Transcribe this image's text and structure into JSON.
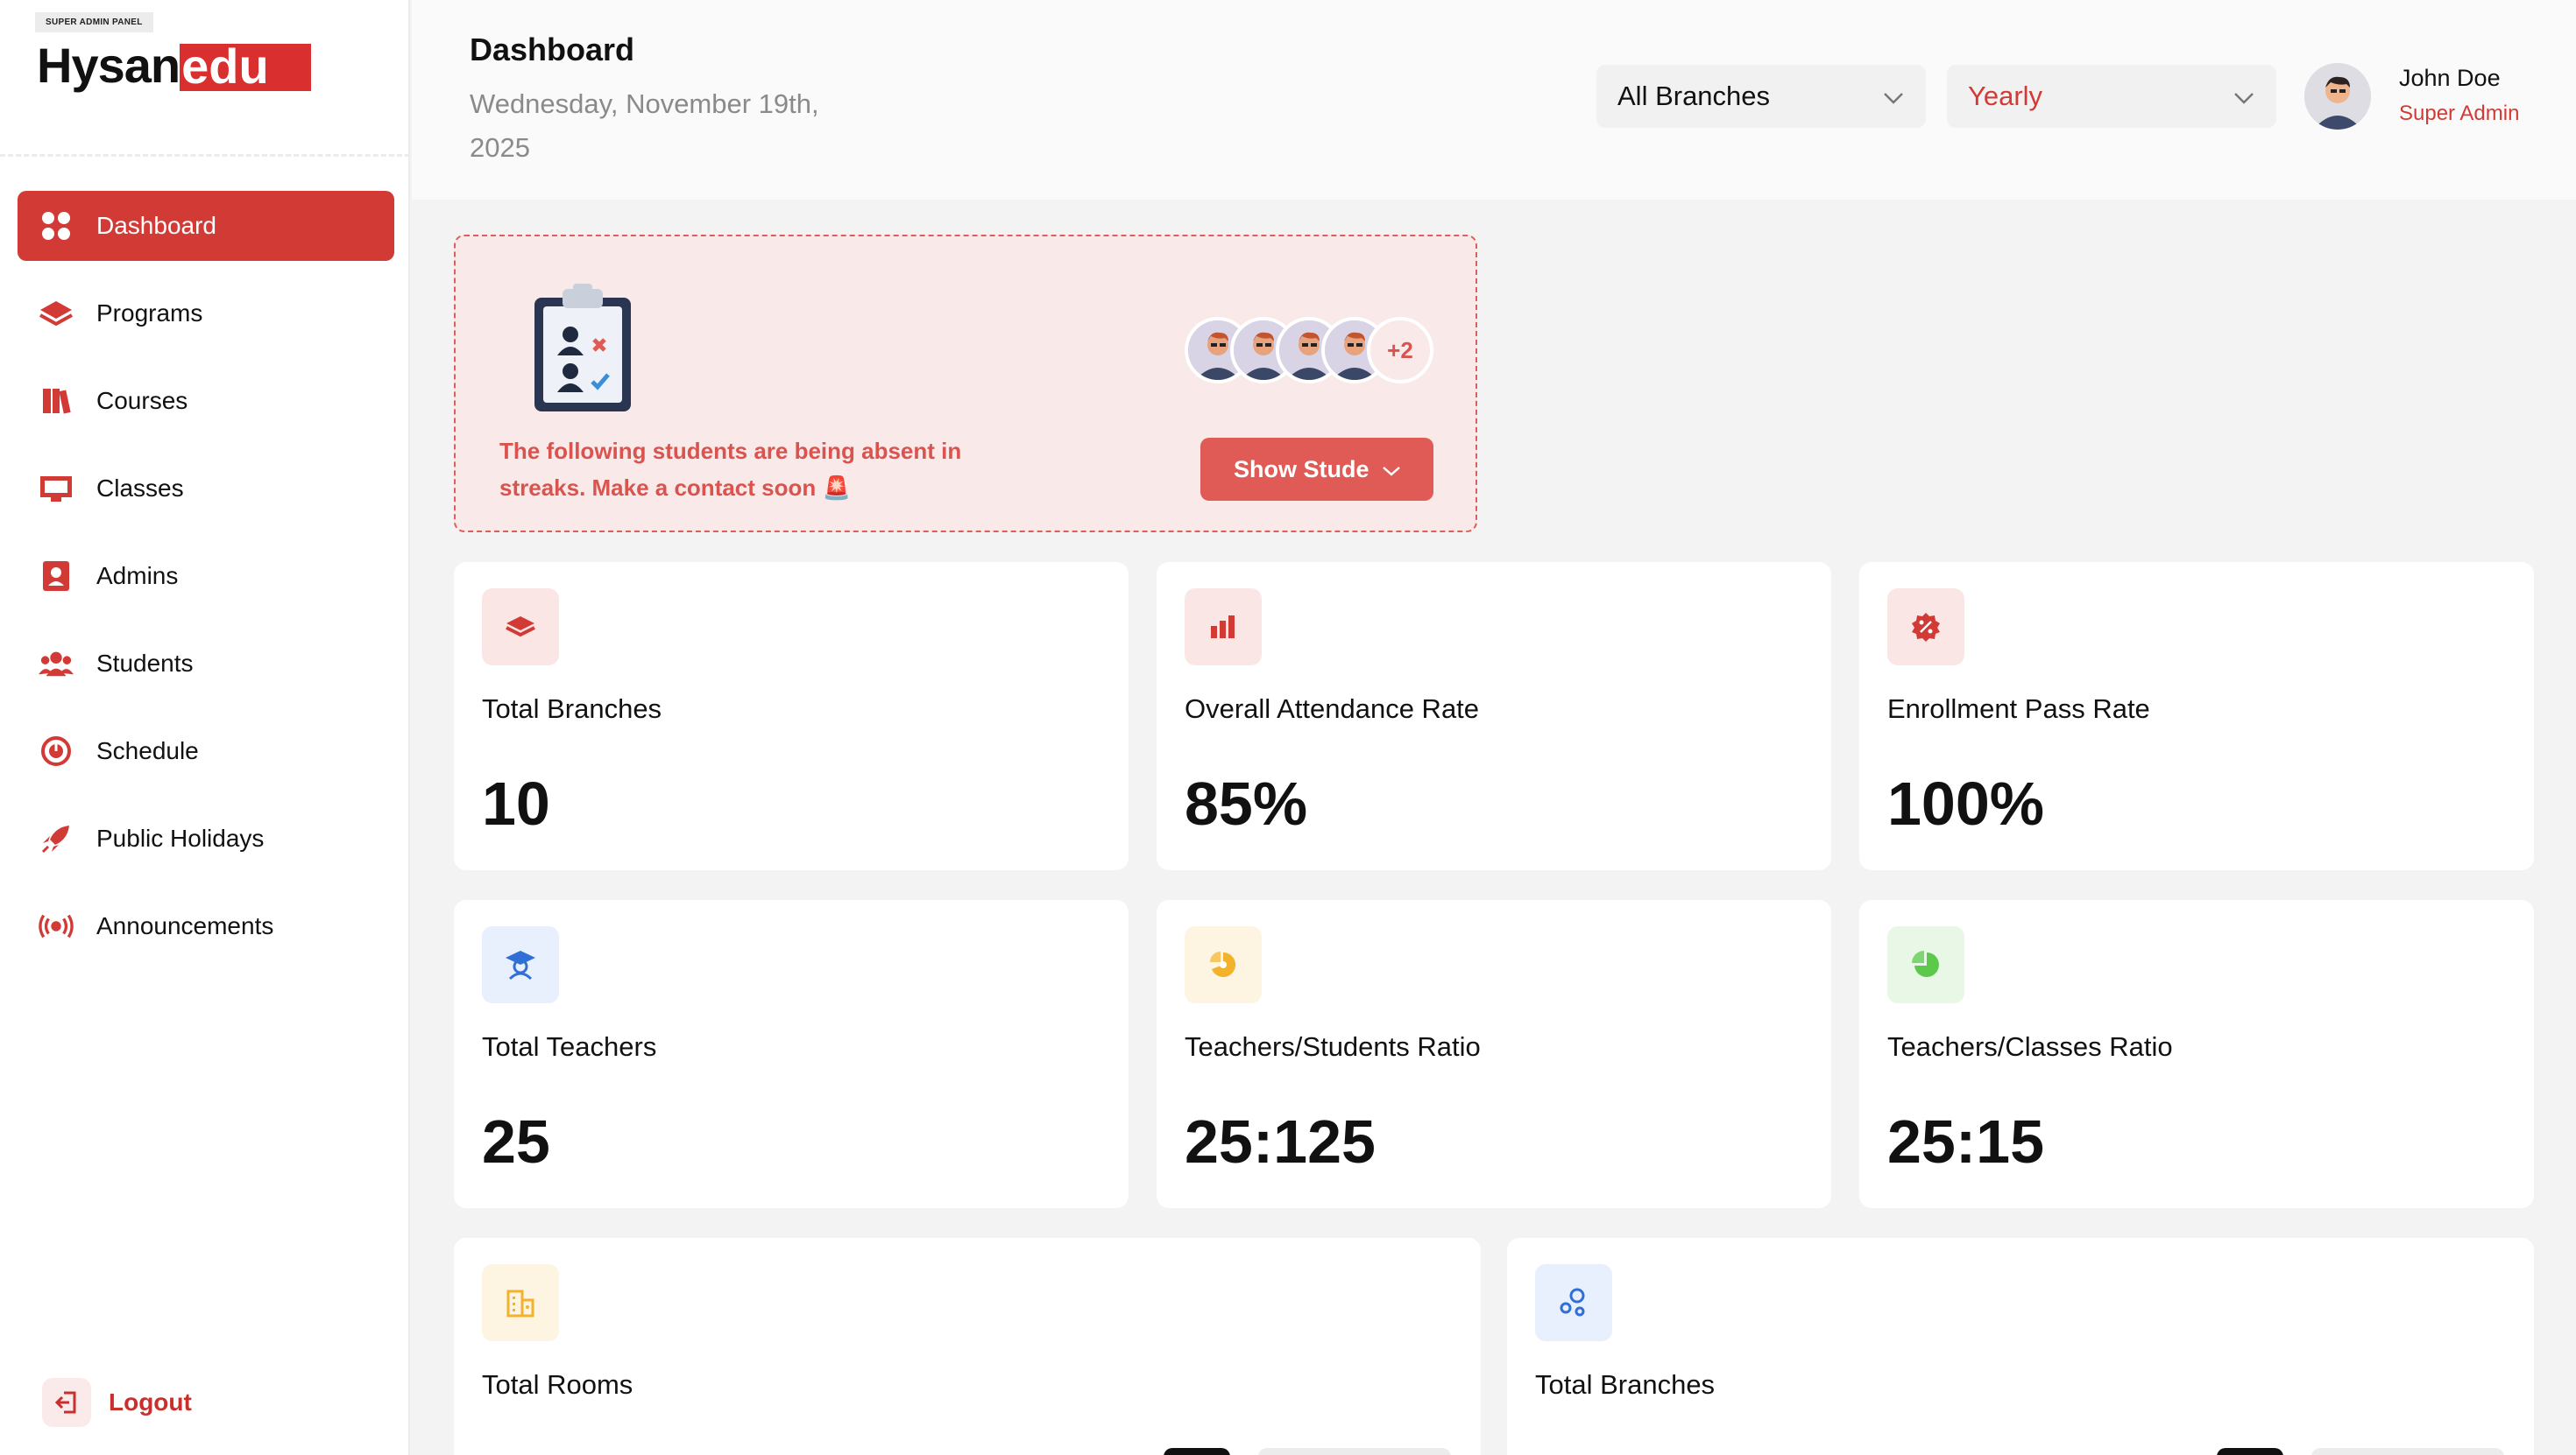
{
  "brand": {
    "tag": "SUPER ADMIN PANEL",
    "name": "Hysan",
    "suffix": "edu",
    "accent": "#d23a35"
  },
  "sidebar": {
    "items": [
      {
        "label": "Dashboard",
        "icon": "grid-icon",
        "active": true
      },
      {
        "label": "Programs",
        "icon": "layers-icon"
      },
      {
        "label": "Courses",
        "icon": "books-icon"
      },
      {
        "label": "Classes",
        "icon": "whiteboard-icon"
      },
      {
        "label": "Admins",
        "icon": "id-badge-icon"
      },
      {
        "label": "Students",
        "icon": "users-icon"
      },
      {
        "label": "Schedule",
        "icon": "clock-icon"
      },
      {
        "label": "Public Holidays",
        "icon": "rocket-icon"
      },
      {
        "label": "Announcements",
        "icon": "broadcast-icon"
      }
    ],
    "logout_label": "Logout"
  },
  "header": {
    "title": "Dashboard",
    "date": "Wednesday, November 19th, 2025",
    "branch_select": "All Branches",
    "period_select": "Yearly",
    "user_name": "John Doe",
    "user_role": "Super Admin"
  },
  "alert": {
    "message": "The following students are being absent in streaks. Make a contact soon 🚨",
    "extra_count": "+2",
    "button_label": "Show Students"
  },
  "stats": [
    {
      "label": "Total Branches",
      "value": "10",
      "icon": "layers-icon",
      "icon_bg": "#fbe6e6",
      "icon_color": "#d23a35"
    },
    {
      "label": "Overall Attendance Rate",
      "value": "85%",
      "icon": "bar-chart-icon",
      "icon_bg": "#fbe6e6",
      "icon_color": "#d23a35"
    },
    {
      "label": "Enrollment Pass Rate",
      "value": "100%",
      "icon": "percent-badge-icon",
      "icon_bg": "#fbe6e6",
      "icon_color": "#d23a35"
    },
    {
      "label": "Total Teachers",
      "value": "25",
      "icon": "teacher-icon",
      "icon_bg": "#e8effd",
      "icon_color": "#2f6fd6"
    },
    {
      "label": "Teachers/Students Ratio",
      "value": "25:125",
      "icon": "pie-chart-icon",
      "icon_bg": "#fdf4e2",
      "icon_color": "#f2b22c"
    },
    {
      "label": "Teachers/Classes Ratio",
      "value": "25:15",
      "icon": "pie-chart-icon",
      "icon_bg": "#e8f7e6",
      "icon_color": "#5cc94a"
    },
    {
      "label": "Total Rooms",
      "icon": "building-icon",
      "icon_bg": "#fdf4e2",
      "icon_color": "#f2b22c"
    },
    {
      "label": "Total Branches",
      "icon": "bubbles-icon",
      "icon_bg": "#e8effd",
      "icon_color": "#2f6fd6"
    }
  ]
}
